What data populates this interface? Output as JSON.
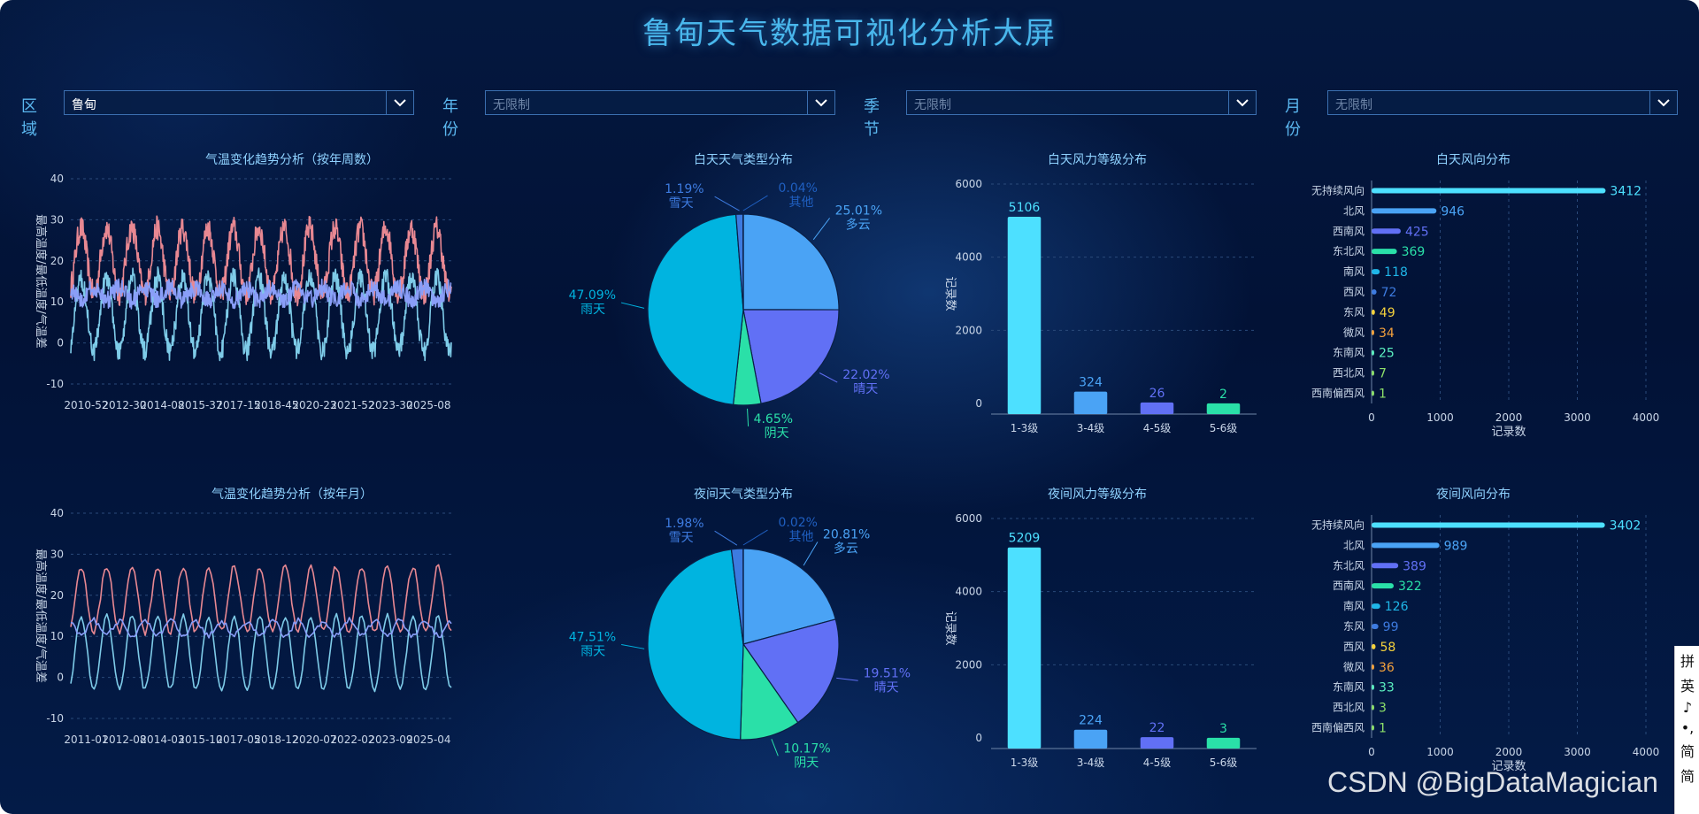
{
  "title": "鲁甸天气数据可视化分析大屏",
  "filters": [
    {
      "label": "区域",
      "value": "鲁甸",
      "placeholder": false
    },
    {
      "label": "年份",
      "value": "无限制",
      "placeholder": true
    },
    {
      "label": "季节",
      "value": "无限制",
      "placeholder": true
    },
    {
      "label": "月份",
      "value": "无限制",
      "placeholder": true
    }
  ],
  "colors": {
    "high": "#e88892",
    "low": "#7ecbe8",
    "diff": "#8a9ef8",
    "cyan": "#4de0ff",
    "blue": "#4aa3f5",
    "indigo": "#6170f5",
    "green": "#2ae0a8",
    "orange": "#f5a23c",
    "yellow": "#f5d23c",
    "lime": "#8ce06a",
    "mint": "#5cf0c0"
  },
  "watermark": "CSDN @BigDataMagician",
  "ime": [
    "拼",
    "英",
    "♪",
    "•,",
    "简",
    "简"
  ],
  "chart_data": [
    {
      "id": "temp_week",
      "type": "line",
      "title": "气温变化趋势分析（按年周数）",
      "ylabel": "最高温度/最低温度/气温差",
      "ylim": [
        -10,
        40
      ],
      "yticks": [
        -10,
        0,
        10,
        20,
        30,
        40
      ],
      "xticks": [
        "2010-52",
        "2012-30",
        "2014-08",
        "2015-37",
        "2017-15",
        "2018-45",
        "2020-23",
        "2021-52",
        "2023-30",
        "2025-08"
      ],
      "n_points": 780,
      "cycles": 15,
      "series": [
        {
          "key": "high",
          "base": 20,
          "amp": 8,
          "noise": 3.0,
          "color": "#e88892"
        },
        {
          "key": "low",
          "base": 7,
          "amp": 9,
          "noise": 2.6,
          "color": "#7ecbe8"
        },
        {
          "key": "diff",
          "base": 12,
          "amp": -1.5,
          "noise": 2.2,
          "color": "#8a9ef8"
        }
      ]
    },
    {
      "id": "temp_month",
      "type": "line",
      "title": "气温变化趋势分析（按年月）",
      "ylabel": "最高温度/最低温度/气温差",
      "ylim": [
        -10,
        40
      ],
      "yticks": [
        -10,
        0,
        10,
        20,
        30,
        40
      ],
      "xticks": [
        "2011-01",
        "2012-08",
        "2014-03",
        "2015-10",
        "2017-05",
        "2018-12",
        "2020-07",
        "2022-02",
        "2023-09",
        "2025-04"
      ],
      "n_points": 180,
      "cycles": 15,
      "series": [
        {
          "key": "high",
          "base": 19,
          "amp": 8,
          "noise": 0.8,
          "color": "#e88892"
        },
        {
          "key": "low",
          "base": 6,
          "amp": 9,
          "noise": 0.6,
          "color": "#7ecbe8"
        },
        {
          "key": "diff",
          "base": 12,
          "amp": -1.8,
          "noise": 0.8,
          "color": "#8a9ef8"
        }
      ]
    },
    {
      "id": "pie_day",
      "type": "pie",
      "title": "白天天气类型分布",
      "slices": [
        {
          "name": "多云",
          "pct": "25.01%",
          "value": 25.01,
          "color": "#4aa3f5"
        },
        {
          "name": "晴天",
          "pct": "22.02%",
          "value": 22.02,
          "color": "#6170f5"
        },
        {
          "name": "阴天",
          "pct": "4.65%",
          "value": 4.65,
          "color": "#2ae0a8"
        },
        {
          "name": "雨天",
          "pct": "47.09%",
          "value": 47.09,
          "color": "#00b4e0"
        },
        {
          "name": "雪天",
          "pct": "1.19%",
          "value": 1.19,
          "color": "#3d7be0"
        },
        {
          "name": "其他",
          "pct": "0.04%",
          "value": 0.04,
          "color": "#1f5fc0"
        }
      ]
    },
    {
      "id": "pie_night",
      "type": "pie",
      "title": "夜间天气类型分布",
      "slices": [
        {
          "name": "多云",
          "pct": "20.81%",
          "value": 20.81,
          "color": "#4aa3f5"
        },
        {
          "name": "晴天",
          "pct": "19.51%",
          "value": 19.51,
          "color": "#6170f5"
        },
        {
          "name": "阴天",
          "pct": "10.17%",
          "value": 10.17,
          "color": "#2ae0a8"
        },
        {
          "name": "雨天",
          "pct": "47.51%",
          "value": 47.51,
          "color": "#00b4e0"
        },
        {
          "name": "雪天",
          "pct": "1.98%",
          "value": 1.98,
          "color": "#3d7be0"
        },
        {
          "name": "其他",
          "pct": "0.02%",
          "value": 0.02,
          "color": "#1f5fc0"
        }
      ]
    },
    {
      "id": "wind_level_day",
      "type": "bar",
      "title": "白天风力等级分布",
      "ylabel": "记录数",
      "ylim": [
        0,
        6000
      ],
      "yticks": [
        0,
        2000,
        4000,
        6000
      ],
      "categories": [
        "1-3级",
        "3-4级",
        "4-5级",
        "5-6级"
      ],
      "values": [
        5106,
        324,
        26,
        2
      ],
      "colors": [
        "#4de0ff",
        "#4aa3f5",
        "#6170f5",
        "#2ae0a8"
      ]
    },
    {
      "id": "wind_level_night",
      "type": "bar",
      "title": "夜间风力等级分布",
      "ylabel": "记录数",
      "ylim": [
        0,
        6000
      ],
      "yticks": [
        0,
        2000,
        4000,
        6000
      ],
      "categories": [
        "1-3级",
        "3-4级",
        "4-5级",
        "5-6级"
      ],
      "values": [
        5209,
        224,
        22,
        3
      ],
      "colors": [
        "#4de0ff",
        "#4aa3f5",
        "#6170f5",
        "#2ae0a8"
      ]
    },
    {
      "id": "wind_dir_day",
      "type": "bar",
      "orientation": "horizontal",
      "title": "白天风向分布",
      "xlabel": "记录数",
      "xlim": [
        0,
        4000
      ],
      "xticks": [
        0,
        1000,
        2000,
        3000,
        4000
      ],
      "categories": [
        "无持续风向",
        "北风",
        "西南风",
        "东北风",
        "南风",
        "西风",
        "东风",
        "微风",
        "东南风",
        "西北风",
        "西南偏西风"
      ],
      "values": [
        3412,
        946,
        425,
        369,
        118,
        72,
        49,
        34,
        25,
        7,
        1
      ],
      "colors": [
        "#4de0ff",
        "#4aa3f5",
        "#6170f5",
        "#2ae0a8",
        "#1fb6e8",
        "#3d7be0",
        "#f5d23c",
        "#f5a23c",
        "#5cf0c0",
        "#8ce06a",
        "#8ce06a"
      ]
    },
    {
      "id": "wind_dir_night",
      "type": "bar",
      "orientation": "horizontal",
      "title": "夜间风向分布",
      "xlabel": "记录数",
      "xlim": [
        0,
        4000
      ],
      "xticks": [
        0,
        1000,
        2000,
        3000,
        4000
      ],
      "categories": [
        "无持续风向",
        "北风",
        "东北风",
        "西南风",
        "南风",
        "东风",
        "西风",
        "微风",
        "东南风",
        "西北风",
        "西南偏西风"
      ],
      "values": [
        3402,
        989,
        389,
        322,
        126,
        99,
        58,
        36,
        33,
        3,
        1
      ],
      "colors": [
        "#4de0ff",
        "#4aa3f5",
        "#6170f5",
        "#2ae0a8",
        "#1fb6e8",
        "#3d7be0",
        "#f5d23c",
        "#f5a23c",
        "#5cf0c0",
        "#8ce06a",
        "#8ce06a"
      ]
    }
  ]
}
